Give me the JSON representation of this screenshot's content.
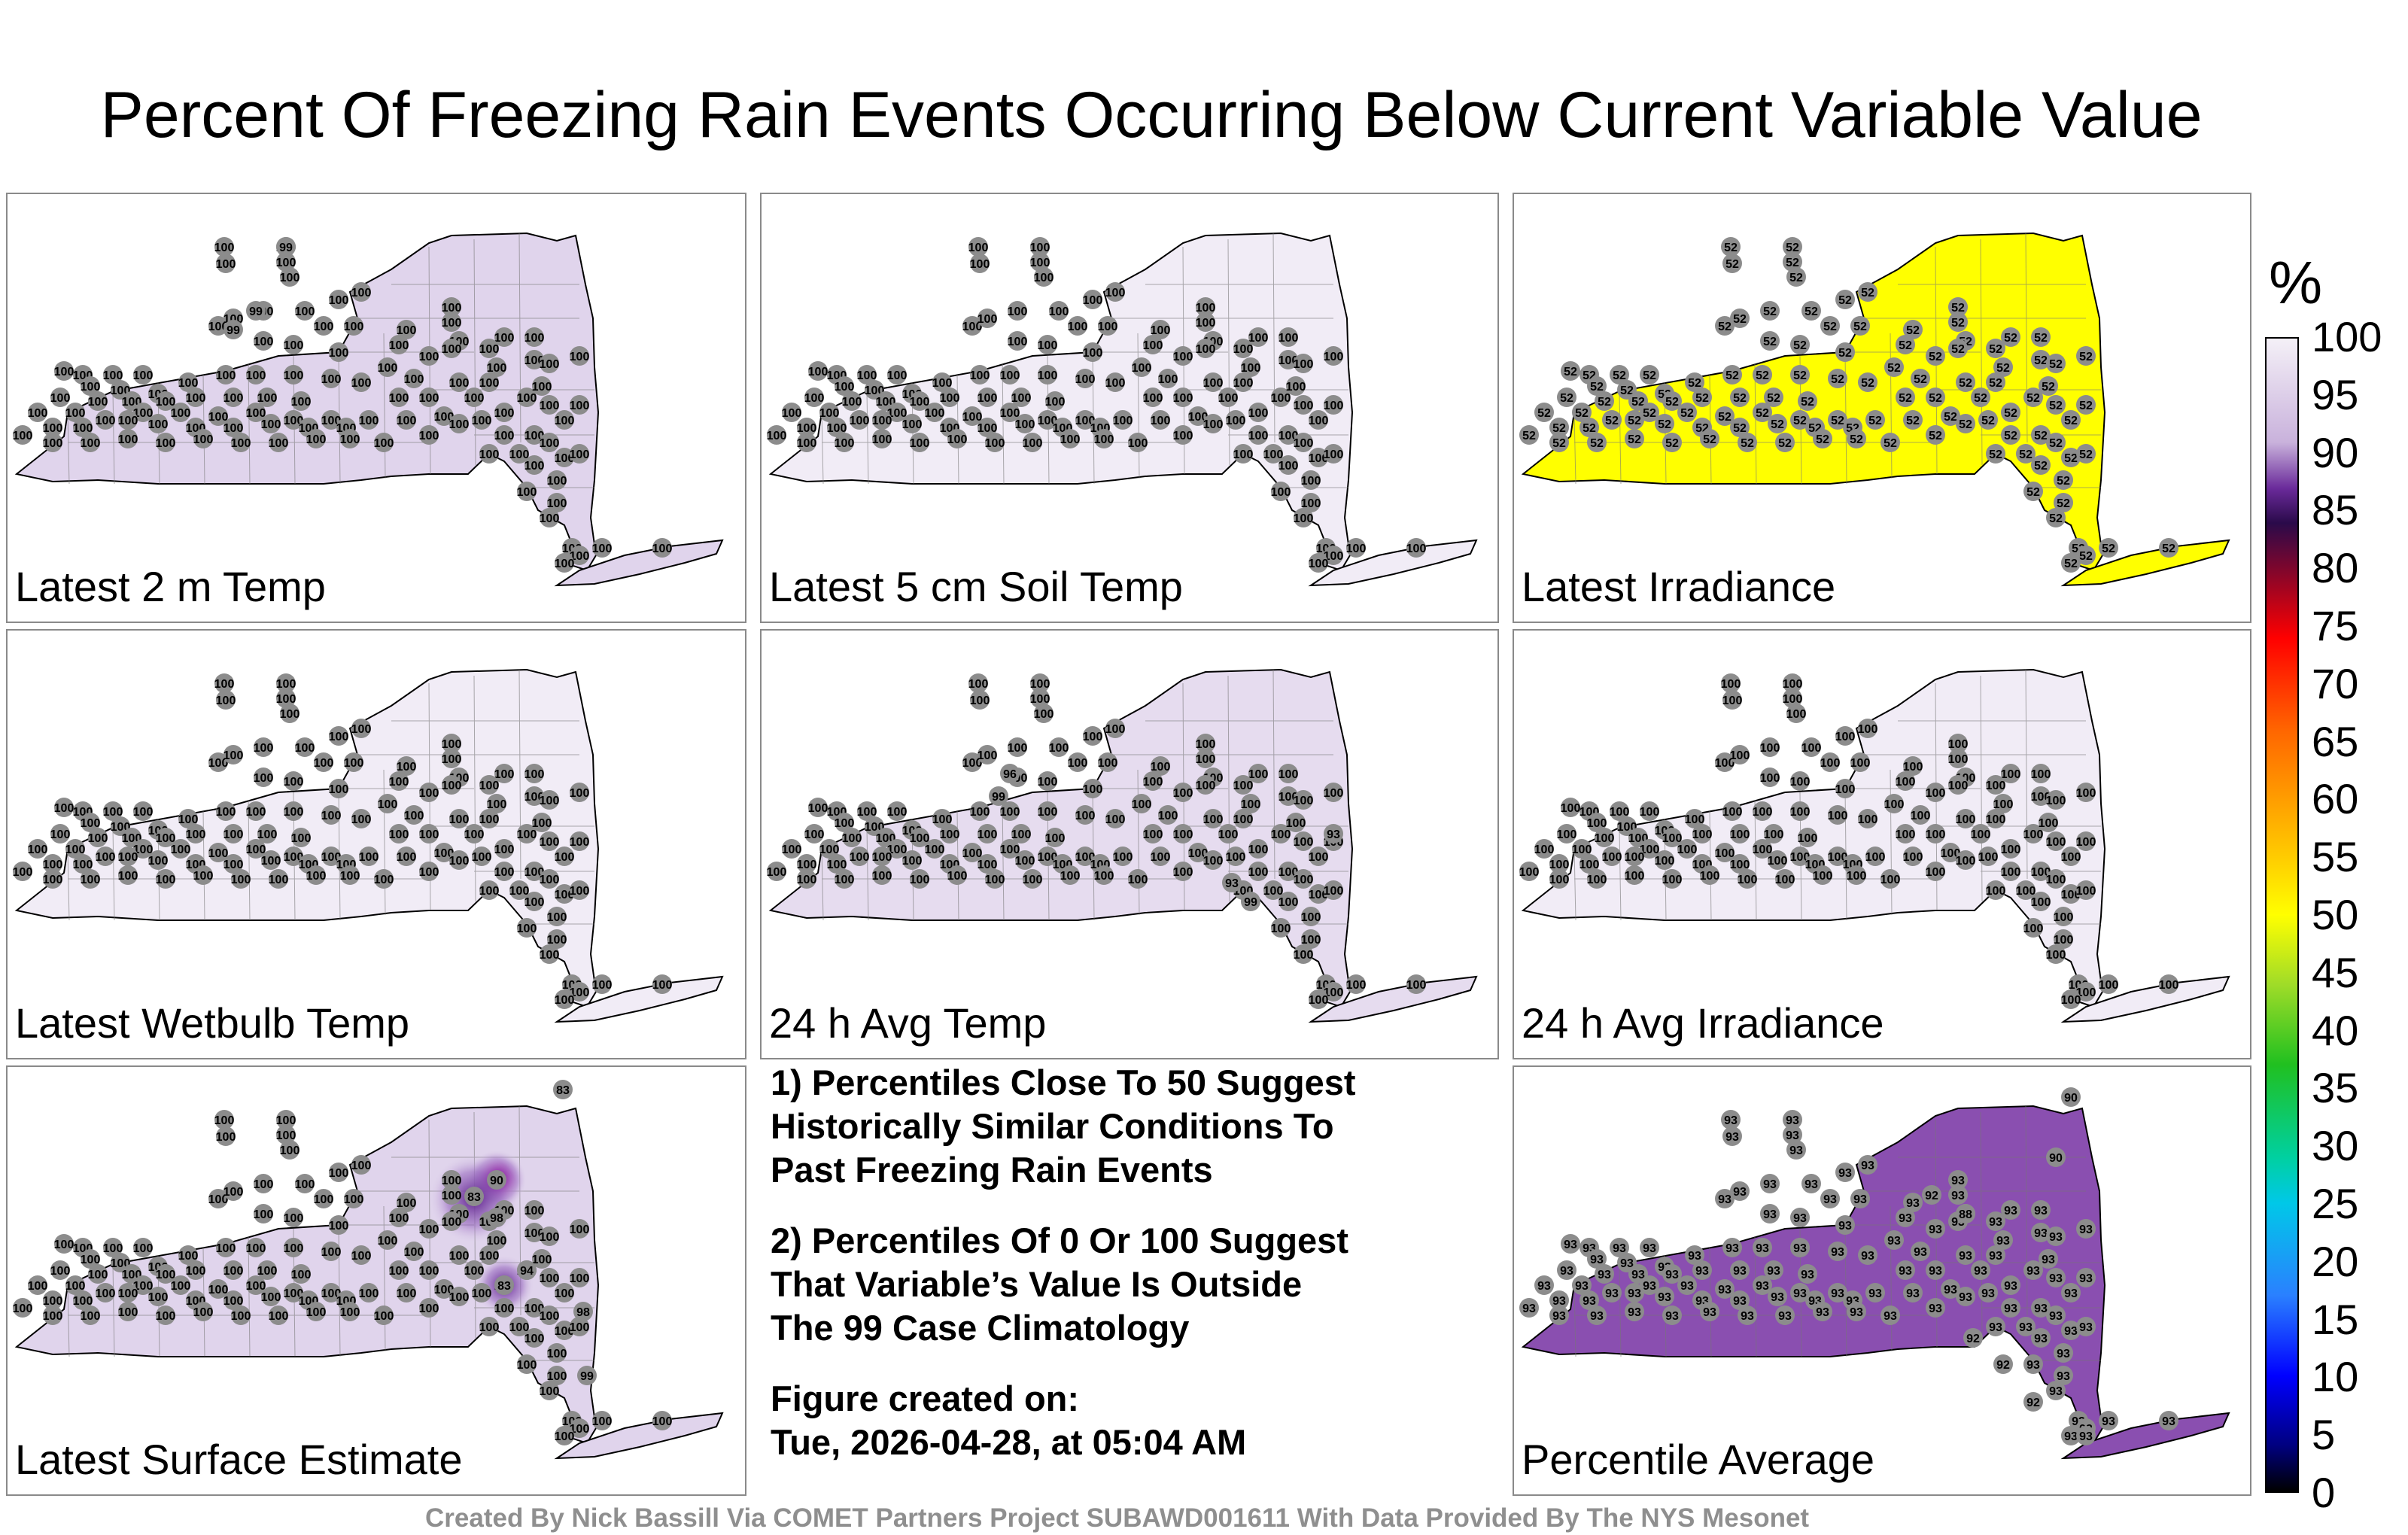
{
  "title": "Percent Of Freezing Rain Events Occurring Below Current Variable Value",
  "panels": [
    {
      "label": "Latest 2 m Temp",
      "fill": "#e0d4ec",
      "dot_value": "100",
      "alt_values": [
        "99",
        "99",
        "99"
      ],
      "highlights": []
    },
    {
      "label": "Latest 5 cm Soil Temp",
      "fill": "#f1ecf6",
      "dot_value": "100",
      "alt_values": [],
      "highlights": []
    },
    {
      "label": "Latest Irradiance",
      "fill": "#ffff00",
      "dot_value": "52",
      "alt_values": [],
      "highlights": []
    },
    {
      "label": "Latest Wetbulb Temp",
      "fill": "#f1ecf6",
      "dot_value": "100",
      "alt_values": [],
      "highlights": []
    },
    {
      "label": "24 h Avg Temp",
      "fill": "#e6dcef",
      "dot_value": "100",
      "alt_values": [
        "96",
        "99",
        "93",
        "99",
        "93"
      ],
      "highlights": []
    },
    {
      "label": "24 h Avg Irradiance",
      "fill": "#f1ecf6",
      "dot_value": "100",
      "alt_values": [],
      "highlights": []
    },
    {
      "label": "Latest Surface Estimate",
      "fill": "#e0d4ec",
      "dot_value": "100",
      "alt_values": [
        "83",
        "90",
        "83",
        "98",
        "83",
        "94",
        "98",
        "99"
      ],
      "highlights": [
        "69"
      ]
    },
    {
      "label": "Percentile Average",
      "fill": "#8a4fb0",
      "dot_value": "93",
      "alt_values": [
        "90",
        "92",
        "88",
        "90",
        "92",
        "92",
        "92",
        "93"
      ],
      "highlights": []
    }
  ],
  "notes": [
    "1) Percentiles Close To 50 Suggest\nHistorically Similar Conditions To\nPast Freezing Rain Events",
    "2) Percentiles Of 0 Or 100 Suggest\nThat Variable’s Value Is Outside\nThe 99 Case Climatology",
    "Figure created on:\nTue, 2026-04-28, at 05:04 AM"
  ],
  "colorbar": {
    "unit": "%",
    "ticks": [
      "100",
      "95",
      "90",
      "85",
      "80",
      "75",
      "70",
      "65",
      "60",
      "55",
      "50",
      "45",
      "40",
      "35",
      "30",
      "25",
      "20",
      "15",
      "10",
      "5",
      "0"
    ]
  },
  "footer": "Created By Nick Bassill Via COMET Partners Project SUBAWD001611 With Data Provided By The NYS Mesonet"
}
